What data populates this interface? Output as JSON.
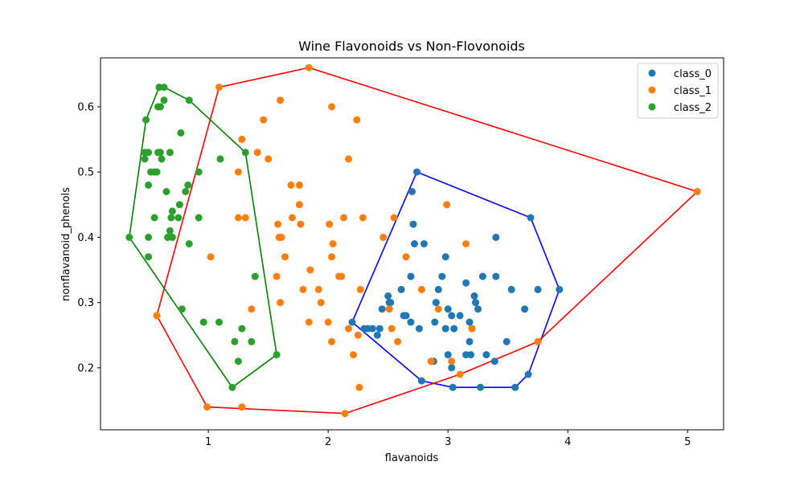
{
  "chart_data": {
    "type": "scatter",
    "title": "Wine Flavonoids vs Non-Flovonoids",
    "xlabel": "flavanoids",
    "ylabel": "nonflavanoid_phenols",
    "xlim": [
      0.1,
      5.3
    ],
    "ylim": [
      0.105,
      0.675
    ],
    "xticks": [
      1,
      2,
      3,
      4,
      5
    ],
    "yticks": [
      0.2,
      0.3,
      0.4,
      0.5,
      0.6
    ],
    "grid": false,
    "legend_position": "top-right",
    "series": [
      {
        "name": "class_0",
        "color": "#1f77b4",
        "hull_color": "#0000ff",
        "points": [
          [
            2.2,
            0.27
          ],
          [
            2.45,
            0.29
          ],
          [
            2.7,
            0.47
          ],
          [
            2.5,
            0.31
          ],
          [
            2.51,
            0.3
          ],
          [
            2.61,
            0.32
          ],
          [
            2.69,
            0.34
          ],
          [
            2.71,
            0.42
          ],
          [
            2.72,
            0.39
          ],
          [
            2.8,
            0.39
          ],
          [
            2.9,
            0.3
          ],
          [
            2.92,
            0.32
          ],
          [
            2.95,
            0.34
          ],
          [
            2.98,
            0.37
          ],
          [
            3.0,
            0.29
          ],
          [
            3.03,
            0.28
          ],
          [
            3.05,
            0.26
          ],
          [
            3.1,
            0.28
          ],
          [
            3.15,
            0.33
          ],
          [
            3.18,
            0.27
          ],
          [
            3.2,
            0.26
          ],
          [
            3.22,
            0.31
          ],
          [
            3.23,
            0.3
          ],
          [
            3.25,
            0.29
          ],
          [
            3.29,
            0.34
          ],
          [
            3.4,
            0.34
          ],
          [
            3.4,
            0.4
          ],
          [
            3.53,
            0.32
          ],
          [
            3.64,
            0.29
          ],
          [
            3.75,
            0.32
          ],
          [
            3.93,
            0.32
          ],
          [
            2.3,
            0.26
          ],
          [
            2.33,
            0.26
          ],
          [
            2.37,
            0.26
          ],
          [
            2.43,
            0.26
          ],
          [
            2.41,
            0.25
          ],
          [
            2.63,
            0.28
          ],
          [
            2.65,
            0.28
          ],
          [
            2.69,
            0.27
          ],
          [
            2.76,
            0.26
          ],
          [
            2.86,
            0.21
          ],
          [
            2.88,
            0.21
          ],
          [
            2.89,
            0.27
          ],
          [
            2.98,
            0.26
          ],
          [
            3.0,
            0.22
          ],
          [
            3.03,
            0.2
          ],
          [
            3.15,
            0.22
          ],
          [
            3.19,
            0.22
          ],
          [
            3.32,
            0.22
          ],
          [
            3.39,
            0.21
          ],
          [
            3.49,
            0.24
          ],
          [
            2.74,
            0.5
          ],
          [
            3.69,
            0.43
          ],
          [
            3.67,
            0.19
          ],
          [
            3.56,
            0.17
          ],
          [
            3.27,
            0.17
          ],
          [
            3.04,
            0.17
          ],
          [
            2.78,
            0.18
          ],
          [
            2.52,
            0.3
          ],
          [
            3.18,
            0.24
          ]
        ]
      },
      {
        "name": "class_1",
        "color": "#ff7f0e",
        "hull_color": "#ff0000",
        "points": [
          [
            0.57,
            0.28
          ],
          [
            1.09,
            0.63
          ],
          [
            1.84,
            0.66
          ],
          [
            5.08,
            0.47
          ],
          [
            3.75,
            0.24
          ],
          [
            3.1,
            0.19
          ],
          [
            2.14,
            0.13
          ],
          [
            1.28,
            0.14
          ],
          [
            0.99,
            0.14
          ],
          [
            1.02,
            0.37
          ],
          [
            1.25,
            0.43
          ],
          [
            1.25,
            0.5
          ],
          [
            1.31,
            0.43
          ],
          [
            1.28,
            0.55
          ],
          [
            1.36,
            0.29
          ],
          [
            1.41,
            0.53
          ],
          [
            1.46,
            0.58
          ],
          [
            1.5,
            0.52
          ],
          [
            1.57,
            0.34
          ],
          [
            1.58,
            0.42
          ],
          [
            1.59,
            0.4
          ],
          [
            1.6,
            0.61
          ],
          [
            1.61,
            0.4
          ],
          [
            1.6,
            0.3
          ],
          [
            1.64,
            0.37
          ],
          [
            1.69,
            0.48
          ],
          [
            1.7,
            0.43
          ],
          [
            1.76,
            0.45
          ],
          [
            1.76,
            0.48
          ],
          [
            1.77,
            0.42
          ],
          [
            1.79,
            0.32
          ],
          [
            1.85,
            0.35
          ],
          [
            1.84,
            0.27
          ],
          [
            1.92,
            0.32
          ],
          [
            1.94,
            0.3
          ],
          [
            2.0,
            0.27
          ],
          [
            2.01,
            0.42
          ],
          [
            2.03,
            0.6
          ],
          [
            2.03,
            0.37
          ],
          [
            2.03,
            0.24
          ],
          [
            2.04,
            0.39
          ],
          [
            2.09,
            0.34
          ],
          [
            2.11,
            0.34
          ],
          [
            2.13,
            0.43
          ],
          [
            2.17,
            0.52
          ],
          [
            2.17,
            0.26
          ],
          [
            2.21,
            0.22
          ],
          [
            2.24,
            0.58
          ],
          [
            2.25,
            0.25
          ],
          [
            2.26,
            0.17
          ],
          [
            2.27,
            0.32
          ],
          [
            2.29,
            0.43
          ],
          [
            2.46,
            0.4
          ],
          [
            2.51,
            0.29
          ],
          [
            2.53,
            0.26
          ],
          [
            2.55,
            0.43
          ],
          [
            2.58,
            0.24
          ],
          [
            2.65,
            0.37
          ],
          [
            2.78,
            0.32
          ],
          [
            2.86,
            0.21
          ],
          [
            2.92,
            0.29
          ],
          [
            2.99,
            0.45
          ],
          [
            3.03,
            0.21
          ],
          [
            3.15,
            0.39
          ],
          [
            3.2,
            0.26
          ]
        ]
      },
      {
        "name": "class_2",
        "color": "#2ca02c",
        "hull_color": "#008000",
        "points": [
          [
            0.34,
            0.4
          ],
          [
            0.47,
            0.52
          ],
          [
            0.48,
            0.58
          ],
          [
            0.47,
            0.53
          ],
          [
            0.5,
            0.53
          ],
          [
            0.5,
            0.48
          ],
          [
            0.5,
            0.4
          ],
          [
            0.5,
            0.37
          ],
          [
            0.52,
            0.5
          ],
          [
            0.55,
            0.5
          ],
          [
            0.55,
            0.43
          ],
          [
            0.57,
            0.5
          ],
          [
            0.58,
            0.53
          ],
          [
            0.58,
            0.6
          ],
          [
            0.59,
            0.63
          ],
          [
            0.6,
            0.6
          ],
          [
            0.6,
            0.53
          ],
          [
            0.61,
            0.52
          ],
          [
            0.63,
            0.61
          ],
          [
            0.63,
            0.63
          ],
          [
            0.65,
            0.47
          ],
          [
            0.66,
            0.4
          ],
          [
            0.68,
            0.53
          ],
          [
            0.69,
            0.43
          ],
          [
            0.68,
            0.41
          ],
          [
            0.7,
            0.44
          ],
          [
            0.7,
            0.4
          ],
          [
            0.75,
            0.43
          ],
          [
            0.76,
            0.45
          ],
          [
            0.77,
            0.56
          ],
          [
            0.78,
            0.29
          ],
          [
            0.81,
            0.47
          ],
          [
            0.83,
            0.48
          ],
          [
            0.84,
            0.61
          ],
          [
            0.84,
            0.39
          ],
          [
            0.92,
            0.5
          ],
          [
            0.92,
            0.43
          ],
          [
            0.96,
            0.27
          ],
          [
            1.1,
            0.52
          ],
          [
            1.09,
            0.27
          ],
          [
            1.2,
            0.17
          ],
          [
            1.22,
            0.24
          ],
          [
            1.25,
            0.21
          ],
          [
            1.28,
            0.26
          ],
          [
            1.31,
            0.53
          ],
          [
            1.36,
            0.24
          ],
          [
            1.39,
            0.34
          ],
          [
            1.57,
            0.22
          ]
        ]
      }
    ]
  }
}
